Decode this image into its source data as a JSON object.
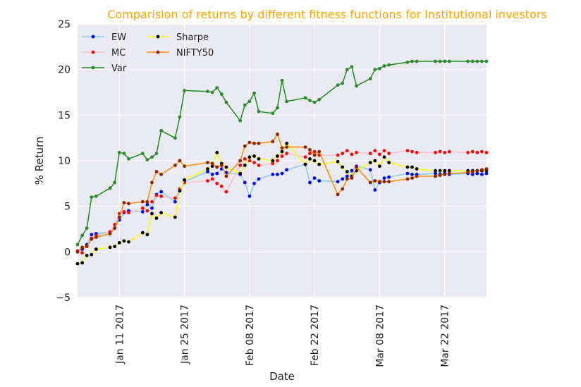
{
  "chart_data": {
    "type": "line",
    "title": "Comparision of returns by different fitness functions for Institutional investors",
    "title_color": "#ffa500",
    "xlabel": "Date",
    "ylabel": "% Return",
    "xlim": [
      "2017-01-02",
      "2017-03-31"
    ],
    "ylim": [
      -5,
      25
    ],
    "y_ticks": [
      -5,
      0,
      5,
      10,
      15,
      20,
      25
    ],
    "x_ticks": [
      {
        "date": "2017-01-11",
        "label": "Jan 11 2017"
      },
      {
        "date": "2017-01-25",
        "label": "Jan 25 2017"
      },
      {
        "date": "2017-02-08",
        "label": "Feb 08 2017"
      },
      {
        "date": "2017-02-22",
        "label": "Feb 22 2017"
      },
      {
        "date": "2017-03-08",
        "label": "Mar 08 2017"
      },
      {
        "date": "2017-03-22",
        "label": "Mar 22 2017"
      }
    ],
    "grid": true,
    "background": "#eaeaf2",
    "legend_position": "top-left",
    "x": [
      "2017-01-02",
      "2017-01-03",
      "2017-01-04",
      "2017-01-05",
      "2017-01-06",
      "2017-01-09",
      "2017-01-10",
      "2017-01-11",
      "2017-01-12",
      "2017-01-13",
      "2017-01-16",
      "2017-01-17",
      "2017-01-18",
      "2017-01-19",
      "2017-01-20",
      "2017-01-23",
      "2017-01-24",
      "2017-01-25",
      "2017-01-30",
      "2017-01-31",
      "2017-02-01",
      "2017-02-02",
      "2017-02-03",
      "2017-02-06",
      "2017-02-07",
      "2017-02-08",
      "2017-02-09",
      "2017-02-10",
      "2017-02-13",
      "2017-02-14",
      "2017-02-15",
      "2017-02-16",
      "2017-02-20",
      "2017-02-21",
      "2017-02-22",
      "2017-02-23",
      "2017-02-27",
      "2017-02-28",
      "2017-03-01",
      "2017-03-02",
      "2017-03-03",
      "2017-03-06",
      "2017-03-07",
      "2017-03-08",
      "2017-03-09",
      "2017-03-10",
      "2017-03-14",
      "2017-03-15",
      "2017-03-16",
      "2017-03-20",
      "2017-03-21",
      "2017-03-22",
      "2017-03-23",
      "2017-03-27",
      "2017-03-28",
      "2017-03-29",
      "2017-03-30",
      "2017-03-31"
    ],
    "series": [
      {
        "name": "EW",
        "color": "#0000ff",
        "line_color": "#87ceeb",
        "values": [
          0.0,
          0.3,
          0.8,
          1.9,
          2.0,
          2.2,
          2.8,
          3.5,
          4.3,
          4.5,
          4.4,
          5.2,
          4.8,
          6.3,
          6.6,
          5.5,
          6.8,
          7.7,
          8.8,
          8.5,
          8.6,
          9.1,
          8.7,
          8.5,
          7.6,
          6.1,
          7.5,
          8.0,
          8.5,
          8.5,
          8.6,
          9.0,
          9.6,
          7.6,
          8.1,
          7.8,
          7.7,
          8.0,
          8.3,
          8.9,
          9.4,
          9.0,
          6.8,
          7.6,
          8.1,
          8.2,
          8.6,
          8.5,
          8.5,
          8.6,
          8.5,
          8.6,
          8.5,
          8.6,
          8.5,
          8.6,
          8.5,
          8.6
        ]
      },
      {
        "name": "MC",
        "color": "#ff0000",
        "line_color": "#ffc0cb",
        "values": [
          0.1,
          -0.1,
          0.6,
          1.5,
          1.8,
          2.2,
          3.0,
          4.2,
          4.4,
          4.3,
          4.8,
          4.5,
          5.5,
          6.2,
          6.1,
          5.9,
          6.9,
          7.6,
          7.8,
          8.0,
          7.5,
          7.2,
          6.6,
          9.5,
          10.2,
          10.0,
          9.8,
          9.5,
          9.7,
          10.0,
          10.5,
          10.8,
          10.4,
          10.8,
          11.0,
          10.6,
          10.6,
          10.8,
          11.1,
          10.7,
          10.9,
          10.8,
          11.1,
          10.7,
          11.1,
          10.8,
          11.1,
          11.0,
          10.9,
          10.9,
          11.0,
          10.9,
          11.0,
          10.9,
          11.0,
          10.9,
          11.0,
          10.9
        ]
      },
      {
        "name": "Var",
        "color": "#2e8b2e",
        "line_color": "#228b22",
        "values": [
          0.8,
          1.8,
          2.6,
          6.0,
          6.1,
          7.0,
          7.6,
          10.9,
          10.8,
          10.2,
          10.8,
          10.1,
          10.4,
          10.8,
          13.3,
          12.5,
          14.8,
          17.7,
          17.6,
          17.5,
          18.0,
          17.3,
          16.4,
          14.4,
          16.1,
          16.5,
          17.4,
          15.4,
          15.2,
          15.8,
          18.8,
          16.5,
          16.9,
          16.6,
          16.4,
          16.7,
          18.3,
          18.5,
          20.0,
          20.3,
          18.2,
          19.0,
          20.0,
          20.1,
          20.4,
          20.5,
          20.8,
          20.9,
          20.9,
          20.9,
          20.9,
          20.9,
          20.9,
          20.9,
          20.9,
          20.9,
          20.9,
          20.9
        ]
      },
      {
        "name": "Sharpe",
        "color": "#000000",
        "line_color": "#ffff00",
        "values": [
          -1.3,
          -1.2,
          -0.4,
          -0.3,
          0.3,
          0.5,
          0.6,
          1.0,
          1.2,
          1.1,
          2.1,
          1.9,
          4.2,
          3.7,
          4.3,
          3.8,
          6.7,
          7.9,
          9.1,
          9.4,
          10.9,
          9.7,
          9.3,
          8.6,
          9.5,
          10.4,
          10.5,
          10.2,
          10.0,
          10.5,
          11.0,
          11.9,
          9.6,
          10.2,
          10.0,
          9.6,
          9.9,
          9.3,
          8.8,
          8.3,
          8.9,
          9.8,
          10.0,
          9.4,
          10.4,
          9.8,
          9.3,
          9.3,
          9.1,
          8.9,
          8.9,
          8.9,
          8.9,
          8.9,
          8.9,
          8.9,
          8.9,
          8.9
        ]
      },
      {
        "name": "NIFTY50",
        "color": "#8b2500",
        "line_color": "#ff8c00",
        "values": [
          0.0,
          0.5,
          0.6,
          1.4,
          1.6,
          2.0,
          2.6,
          3.8,
          5.4,
          5.3,
          5.5,
          5.5,
          7.6,
          8.8,
          8.5,
          9.5,
          10.0,
          9.4,
          9.8,
          9.7,
          9.3,
          9.5,
          8.3,
          10.0,
          11.6,
          12.0,
          11.9,
          11.9,
          12.1,
          12.9,
          11.4,
          11.5,
          11.5,
          11.2,
          10.6,
          11.0,
          6.3,
          6.9,
          8.0,
          8.1,
          9.3,
          7.6,
          7.8,
          7.7,
          7.7,
          7.7,
          8.0,
          8.1,
          8.3,
          8.3,
          8.4,
          8.5,
          8.6,
          8.7,
          8.8,
          8.9,
          9.0,
          9.1
        ]
      }
    ]
  }
}
